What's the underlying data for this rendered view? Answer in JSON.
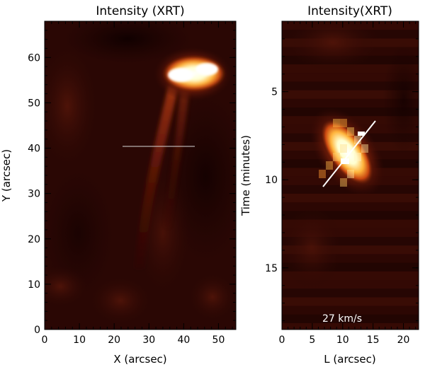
{
  "panels": [
    {
      "id": "left",
      "title": "Intensity (XRT)",
      "xlabel": "X (arcsec)",
      "ylabel": "Y (arcsec)",
      "x_ticks": [
        "0",
        "10",
        "20",
        "30",
        "40",
        "50"
      ],
      "y_ticks": [
        "0",
        "10",
        "20",
        "30",
        "40",
        "50",
        "60"
      ],
      "x_range": [
        0,
        55
      ],
      "y_range": [
        0,
        68
      ]
    },
    {
      "id": "right",
      "title": "Intensity(XRT)",
      "xlabel": "L (arcsec)",
      "ylabel": "Time (minutes)",
      "x_ticks": [
        "0",
        "5",
        "10",
        "15",
        "20"
      ],
      "y_ticks": [
        "5",
        "10",
        "15"
      ],
      "x_range": [
        0,
        22.5
      ],
      "y_range": [
        18.5,
        1.0
      ],
      "annotation": "27 km/s"
    }
  ],
  "colors": {
    "colormap": "red-temperature",
    "background": "#2a0704",
    "cut_line": "#d8d8d8",
    "fit_line": "#ffffff"
  }
}
